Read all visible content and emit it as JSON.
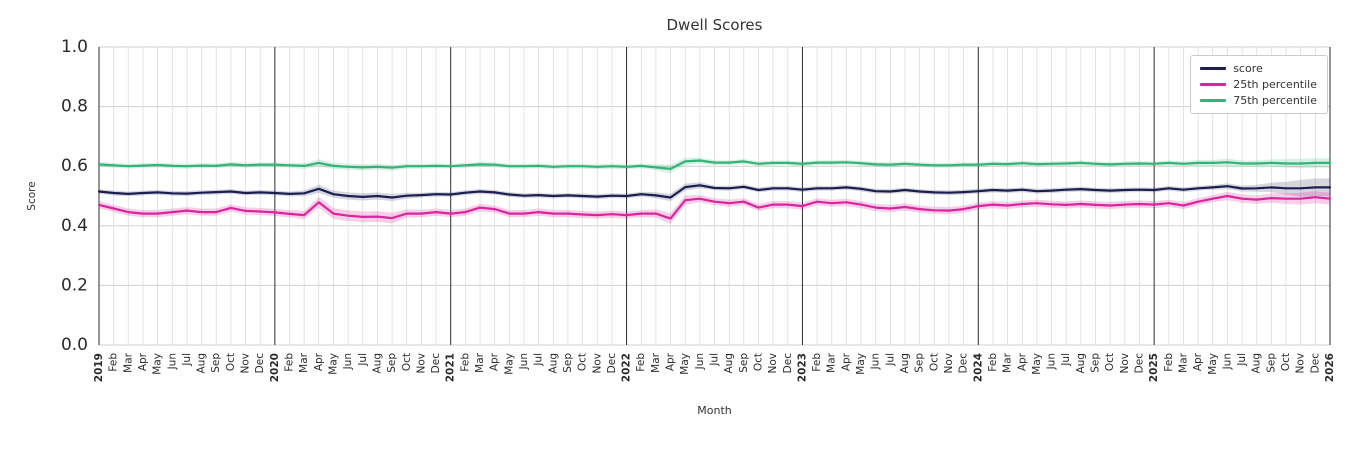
{
  "page": {
    "background": "#ffffff"
  },
  "chart_data": {
    "type": "line",
    "title": "Dwell Scores",
    "xlabel": "Month",
    "ylabel": "Score",
    "ylim": [
      0.0,
      1.0
    ],
    "yticks": [
      0.0,
      0.2,
      0.4,
      0.6,
      0.8,
      1.0
    ],
    "grid": true,
    "legend_position": "upper right",
    "x_labels": [
      "2019",
      "Feb",
      "Mar",
      "Apr",
      "May",
      "Jun",
      "Jul",
      "Aug",
      "Sep",
      "Oct",
      "Nov",
      "Dec",
      "2020",
      "Feb",
      "Mar",
      "Apr",
      "May",
      "Jun",
      "Jul",
      "Aug",
      "Sep",
      "Oct",
      "Nov",
      "Dec",
      "2021",
      "Feb",
      "Mar",
      "Apr",
      "May",
      "Jun",
      "Jul",
      "Aug",
      "Sep",
      "Oct",
      "Nov",
      "Dec",
      "2022",
      "Feb",
      "Mar",
      "Apr",
      "May",
      "Jun",
      "Jul",
      "Aug",
      "Sep",
      "Oct",
      "Nov",
      "Dec",
      "2023",
      "Feb",
      "Mar",
      "Apr",
      "May",
      "Jun",
      "Jul",
      "Aug",
      "Sep",
      "Oct",
      "Nov",
      "Dec",
      "2024",
      "Feb",
      "Mar",
      "Apr",
      "May",
      "Jun",
      "Jul",
      "Aug",
      "Sep",
      "Oct",
      "Nov",
      "Dec",
      "2025",
      "Feb",
      "Mar",
      "Apr",
      "May",
      "Jun",
      "Jul",
      "Aug",
      "Sep",
      "Oct",
      "Nov",
      "Dec",
      "2026"
    ],
    "series": [
      {
        "name": "score",
        "color": "#1d1d50",
        "band_opacity": 0.18,
        "values": [
          0.515,
          0.51,
          0.507,
          0.51,
          0.512,
          0.509,
          0.508,
          0.511,
          0.513,
          0.515,
          0.51,
          0.512,
          0.51,
          0.507,
          0.509,
          0.524,
          0.506,
          0.5,
          0.497,
          0.5,
          0.495,
          0.501,
          0.503,
          0.506,
          0.505,
          0.511,
          0.515,
          0.512,
          0.505,
          0.501,
          0.503,
          0.5,
          0.502,
          0.5,
          0.498,
          0.501,
          0.5,
          0.506,
          0.502,
          0.495,
          0.53,
          0.536,
          0.527,
          0.526,
          0.531,
          0.52,
          0.526,
          0.526,
          0.521,
          0.526,
          0.526,
          0.529,
          0.524,
          0.516,
          0.515,
          0.52,
          0.515,
          0.512,
          0.511,
          0.513,
          0.516,
          0.52,
          0.518,
          0.521,
          0.516,
          0.518,
          0.521,
          0.523,
          0.52,
          0.518,
          0.52,
          0.521,
          0.52,
          0.526,
          0.521,
          0.526,
          0.529,
          0.533,
          0.525,
          0.526,
          0.529,
          0.526,
          0.526,
          0.529,
          0.529
        ],
        "band_halfwidth": [
          0.008,
          0.008,
          0.008,
          0.008,
          0.008,
          0.008,
          0.008,
          0.008,
          0.008,
          0.008,
          0.008,
          0.008,
          0.008,
          0.008,
          0.01,
          0.014,
          0.012,
          0.012,
          0.012,
          0.012,
          0.012,
          0.01,
          0.008,
          0.008,
          0.008,
          0.008,
          0.008,
          0.008,
          0.008,
          0.008,
          0.008,
          0.008,
          0.008,
          0.008,
          0.008,
          0.008,
          0.008,
          0.008,
          0.01,
          0.012,
          0.012,
          0.01,
          0.008,
          0.008,
          0.008,
          0.008,
          0.008,
          0.008,
          0.008,
          0.008,
          0.008,
          0.008,
          0.008,
          0.008,
          0.008,
          0.008,
          0.008,
          0.008,
          0.008,
          0.008,
          0.008,
          0.008,
          0.008,
          0.008,
          0.008,
          0.008,
          0.008,
          0.008,
          0.008,
          0.008,
          0.008,
          0.008,
          0.008,
          0.008,
          0.008,
          0.008,
          0.008,
          0.01,
          0.01,
          0.012,
          0.016,
          0.022,
          0.028,
          0.03,
          0.03
        ]
      },
      {
        "name": "25th percentile",
        "color": "#d9269d",
        "band_opacity": 0.22,
        "values": [
          0.47,
          0.458,
          0.446,
          0.441,
          0.441,
          0.446,
          0.451,
          0.446,
          0.446,
          0.46,
          0.45,
          0.448,
          0.445,
          0.44,
          0.436,
          0.479,
          0.441,
          0.434,
          0.43,
          0.431,
          0.426,
          0.441,
          0.441,
          0.446,
          0.441,
          0.446,
          0.461,
          0.456,
          0.441,
          0.441,
          0.446,
          0.441,
          0.441,
          0.438,
          0.436,
          0.439,
          0.436,
          0.441,
          0.441,
          0.424,
          0.486,
          0.491,
          0.481,
          0.476,
          0.481,
          0.461,
          0.471,
          0.471,
          0.466,
          0.481,
          0.476,
          0.479,
          0.471,
          0.461,
          0.458,
          0.463,
          0.456,
          0.452,
          0.451,
          0.456,
          0.466,
          0.471,
          0.468,
          0.473,
          0.476,
          0.472,
          0.47,
          0.473,
          0.47,
          0.468,
          0.471,
          0.473,
          0.471,
          0.476,
          0.468,
          0.481,
          0.491,
          0.5,
          0.491,
          0.488,
          0.493,
          0.491,
          0.491,
          0.496,
          0.491
        ],
        "band_halfwidth": [
          0.012,
          0.012,
          0.012,
          0.012,
          0.012,
          0.012,
          0.012,
          0.012,
          0.012,
          0.012,
          0.012,
          0.012,
          0.012,
          0.012,
          0.014,
          0.018,
          0.018,
          0.018,
          0.018,
          0.018,
          0.018,
          0.014,
          0.012,
          0.012,
          0.012,
          0.012,
          0.012,
          0.012,
          0.012,
          0.012,
          0.012,
          0.012,
          0.012,
          0.012,
          0.012,
          0.012,
          0.012,
          0.012,
          0.014,
          0.018,
          0.016,
          0.012,
          0.012,
          0.012,
          0.012,
          0.012,
          0.012,
          0.012,
          0.012,
          0.012,
          0.012,
          0.012,
          0.012,
          0.012,
          0.012,
          0.012,
          0.012,
          0.012,
          0.012,
          0.012,
          0.012,
          0.012,
          0.012,
          0.012,
          0.012,
          0.012,
          0.012,
          0.012,
          0.012,
          0.012,
          0.012,
          0.012,
          0.012,
          0.012,
          0.012,
          0.012,
          0.012,
          0.014,
          0.014,
          0.014,
          0.016,
          0.018,
          0.02,
          0.02,
          0.02
        ]
      },
      {
        "name": "75th percentile",
        "color": "#33b377",
        "band_opacity": 0.2,
        "values": [
          0.606,
          0.603,
          0.6,
          0.602,
          0.604,
          0.601,
          0.6,
          0.602,
          0.601,
          0.606,
          0.603,
          0.605,
          0.605,
          0.603,
          0.601,
          0.611,
          0.601,
          0.598,
          0.596,
          0.598,
          0.595,
          0.6,
          0.6,
          0.601,
          0.6,
          0.603,
          0.606,
          0.605,
          0.6,
          0.6,
          0.601,
          0.598,
          0.6,
          0.6,
          0.598,
          0.6,
          0.598,
          0.601,
          0.596,
          0.591,
          0.616,
          0.619,
          0.612,
          0.612,
          0.616,
          0.608,
          0.611,
          0.611,
          0.608,
          0.612,
          0.612,
          0.613,
          0.61,
          0.606,
          0.605,
          0.608,
          0.605,
          0.603,
          0.603,
          0.605,
          0.605,
          0.608,
          0.607,
          0.61,
          0.607,
          0.608,
          0.609,
          0.611,
          0.608,
          0.606,
          0.608,
          0.609,
          0.608,
          0.611,
          0.608,
          0.611,
          0.611,
          0.613,
          0.609,
          0.609,
          0.611,
          0.609,
          0.609,
          0.611,
          0.611
        ],
        "band_halfwidth": [
          0.008,
          0.008,
          0.008,
          0.008,
          0.008,
          0.008,
          0.008,
          0.008,
          0.008,
          0.008,
          0.008,
          0.008,
          0.008,
          0.008,
          0.01,
          0.012,
          0.01,
          0.01,
          0.01,
          0.01,
          0.01,
          0.008,
          0.008,
          0.008,
          0.008,
          0.008,
          0.008,
          0.008,
          0.008,
          0.008,
          0.008,
          0.008,
          0.008,
          0.008,
          0.008,
          0.008,
          0.008,
          0.008,
          0.01,
          0.014,
          0.012,
          0.01,
          0.008,
          0.008,
          0.008,
          0.008,
          0.008,
          0.008,
          0.008,
          0.008,
          0.008,
          0.008,
          0.008,
          0.008,
          0.008,
          0.008,
          0.008,
          0.008,
          0.008,
          0.008,
          0.008,
          0.008,
          0.008,
          0.008,
          0.008,
          0.008,
          0.008,
          0.008,
          0.008,
          0.008,
          0.008,
          0.008,
          0.008,
          0.008,
          0.008,
          0.01,
          0.01,
          0.012,
          0.01,
          0.01,
          0.012,
          0.014,
          0.016,
          0.016,
          0.016
        ]
      }
    ],
    "colors": {
      "grid_minor": "#dcdcdc",
      "grid_major": "#cfcfcf",
      "year_line": "#2e2e2e",
      "tick_text": "#2b2b2b"
    }
  }
}
